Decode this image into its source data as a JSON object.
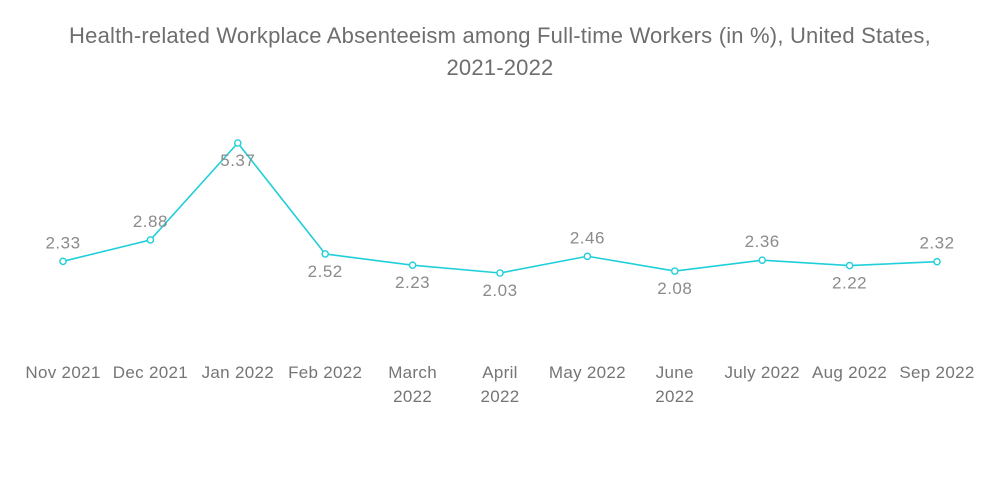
{
  "title": {
    "lines": [
      "Health-related Workplace Absenteeism among Full-time Workers (in %), United States,",
      "2021-2022"
    ],
    "color": "#6e6e6e"
  },
  "chart_data": {
    "type": "line",
    "title": "Health-related Workplace Absenteeism among Full-time Workers (in %), United States, 2021-2022",
    "categories": [
      "Nov 2021",
      "Dec 2021",
      "Jan 2022",
      "Feb 2022",
      "March 2022",
      "April 2022",
      "May 2022",
      "June 2022",
      "July 2022",
      "Aug 2022",
      "Sep 2022"
    ],
    "x_tick_lines": [
      [
        "Nov 2021"
      ],
      [
        "Dec 2021"
      ],
      [
        "Jan 2022"
      ],
      [
        "Feb 2022"
      ],
      [
        "March",
        "2022"
      ],
      [
        "April",
        "2022"
      ],
      [
        "May 2022"
      ],
      [
        "June",
        "2022"
      ],
      [
        "July 2022"
      ],
      [
        "Aug 2022"
      ],
      [
        "Sep 2022"
      ]
    ],
    "series": [
      {
        "name": "Health-related Workplace Absenteeism",
        "values": [
          2.33,
          2.88,
          5.37,
          2.52,
          2.23,
          2.03,
          2.46,
          2.08,
          2.36,
          2.22,
          2.32
        ]
      }
    ],
    "data_labels": [
      "2.33",
      "2.88",
      "5.37",
      "2.52",
      "2.23",
      "2.03",
      "2.46",
      "2.08",
      "2.36",
      "2.22",
      "2.32"
    ],
    "label_position": [
      "above",
      "above",
      "below",
      "below",
      "below",
      "below",
      "above",
      "below",
      "above",
      "below",
      "above"
    ],
    "xlabel": "",
    "ylabel": "",
    "ylim": [
      2.03,
      5.37
    ],
    "grid": false,
    "legend": false,
    "axes_visible": false,
    "line_color": "#1fcfda",
    "marker_fill": "#ffffff",
    "marker_stroke": "#1fcfda",
    "data_label_color": "#8b8b8b",
    "axis_label_color": "#757575"
  }
}
